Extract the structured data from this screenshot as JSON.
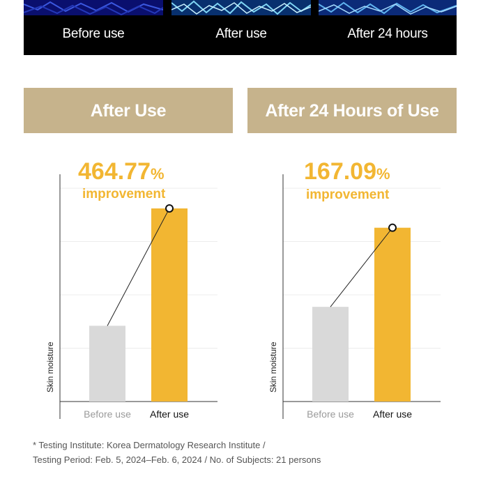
{
  "photo_labels": [
    "Before use",
    "After use",
    "After 24 hours"
  ],
  "colors": {
    "banner": "#c6b38c",
    "accent": "#f2b632",
    "before_bar": "#d9d9d9",
    "after_bar": "#f2b632"
  },
  "chart_data": [
    {
      "type": "bar",
      "title": "After Use",
      "headline_value": "464.77",
      "headline_unit": "%",
      "headline_text": "improvement",
      "ylabel": "Skin moisture",
      "categories": [
        "Before use",
        "After use"
      ],
      "values": [
        100,
        564.77
      ],
      "ylim": [
        -200,
        700
      ],
      "grid": true,
      "show_yticks": false
    },
    {
      "type": "bar",
      "title": "After 24 Hours of Use",
      "headline_value": "167.09",
      "headline_unit": "%",
      "headline_text": "improvement",
      "ylabel": "Skin moisture",
      "categories": [
        "Before use",
        "After use"
      ],
      "values": [
        100,
        267.09
      ],
      "ylim": [
        -100,
        380
      ],
      "grid": true,
      "show_yticks": false
    }
  ],
  "footnote": {
    "line1": "* Testing Institute: Korea Dermatology Research Institute /",
    "line2": "Testing Period: Feb. 5, 2024–Feb. 6, 2024 / No. of Subjects: 21 persons"
  }
}
